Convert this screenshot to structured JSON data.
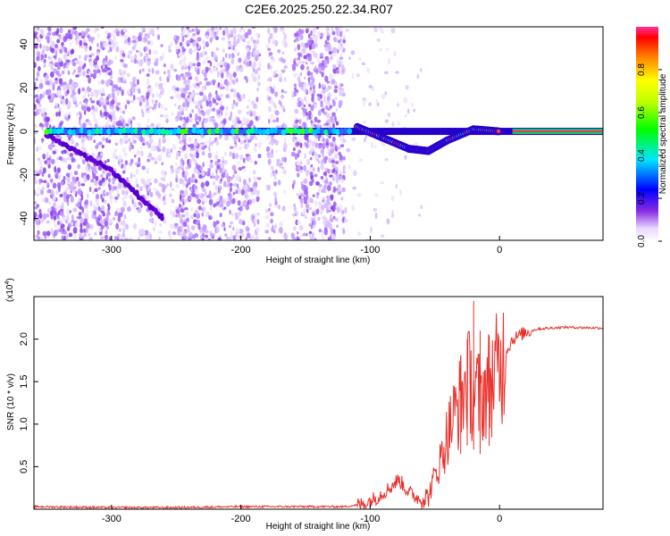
{
  "title": "C2E6.2025.250.22.34.R07",
  "chart_data": [
    {
      "type": "heatmap",
      "panel": "spectrogram",
      "xlabel": "Height of straight line (km)",
      "ylabel": "Frequency (Hz)",
      "xlim": [
        -360,
        80
      ],
      "ylim": [
        -50,
        48
      ],
      "xticks": [
        -300,
        -200,
        -100,
        0
      ],
      "xtick_labels": [
        "-300",
        "-200",
        "-100",
        "0"
      ],
      "yticks": [
        -40,
        -20,
        0,
        20,
        40
      ],
      "ytick_labels": [
        "-40",
        "-20",
        "0",
        "20",
        "40"
      ],
      "colorbar": {
        "label": "Normalized spectral amplitude",
        "range": [
          0,
          1
        ],
        "ticks": [
          0.0,
          0.2,
          0.4,
          0.6,
          0.8
        ],
        "tick_labels": [
          "0.0",
          "0.2",
          "0.4",
          "0.6",
          "0.8"
        ],
        "colormap": "rainbow"
      },
      "features": {
        "carrier_line": {
          "frequency_hz": 0,
          "x_range": [
            -350,
            80
          ],
          "amplitude": 0.4
        },
        "diagonal_branch": {
          "x": [
            -350,
            -300,
            -260
          ],
          "frequency_hz": [
            -2,
            -18,
            -40
          ]
        },
        "doppler_dip": {
          "x": [
            -110,
            -90,
            -70,
            -55,
            -40,
            -20,
            0
          ],
          "frequency_hz": [
            2,
            -3,
            -8,
            -9,
            -4,
            1,
            0
          ]
        }
      }
    },
    {
      "type": "line",
      "panel": "snr",
      "xlabel": "Height of straight line (km)",
      "ylabel": "SNR (10 * v/v)",
      "scale_note": "(x10^4)",
      "scale_base": "(x10",
      "scale_exp": "4",
      "xlim": [
        -360,
        80
      ],
      "ylim": [
        0,
        2.5
      ],
      "xticks": [
        -300,
        -200,
        -100,
        0
      ],
      "xtick_labels": [
        "-300",
        "-200",
        "-100",
        "0"
      ],
      "yticks": [
        0.5,
        1.0,
        1.5,
        2.0
      ],
      "ytick_labels": [
        "0.5",
        "1.0",
        "1.5",
        "2.0"
      ],
      "color": "#e8312c",
      "series": [
        {
          "name": "SNR",
          "x": [
            -360,
            -300,
            -250,
            -200,
            -150,
            -120,
            -105,
            -95,
            -85,
            -78,
            -70,
            -62,
            -55,
            -50,
            -45,
            -40,
            -35,
            -30,
            -25,
            -20,
            -15,
            -10,
            -5,
            0,
            5,
            10,
            20,
            30,
            50,
            80
          ],
          "y": [
            0.03,
            0.02,
            0.02,
            0.03,
            0.03,
            0.03,
            0.06,
            0.14,
            0.25,
            0.35,
            0.2,
            0.12,
            0.15,
            0.4,
            0.6,
            0.9,
            1.1,
            1.3,
            1.5,
            1.4,
            1.3,
            1.45,
            1.55,
            1.65,
            1.85,
            2.0,
            2.08,
            2.12,
            2.14,
            2.13
          ]
        }
      ],
      "spikes": [
        {
          "x": -30,
          "y": 1.8
        },
        {
          "x": -25,
          "y": 2.0
        },
        {
          "x": -20,
          "y": 2.45
        },
        {
          "x": -15,
          "y": 2.1
        },
        {
          "x": -8,
          "y": 2.0
        }
      ]
    }
  ]
}
